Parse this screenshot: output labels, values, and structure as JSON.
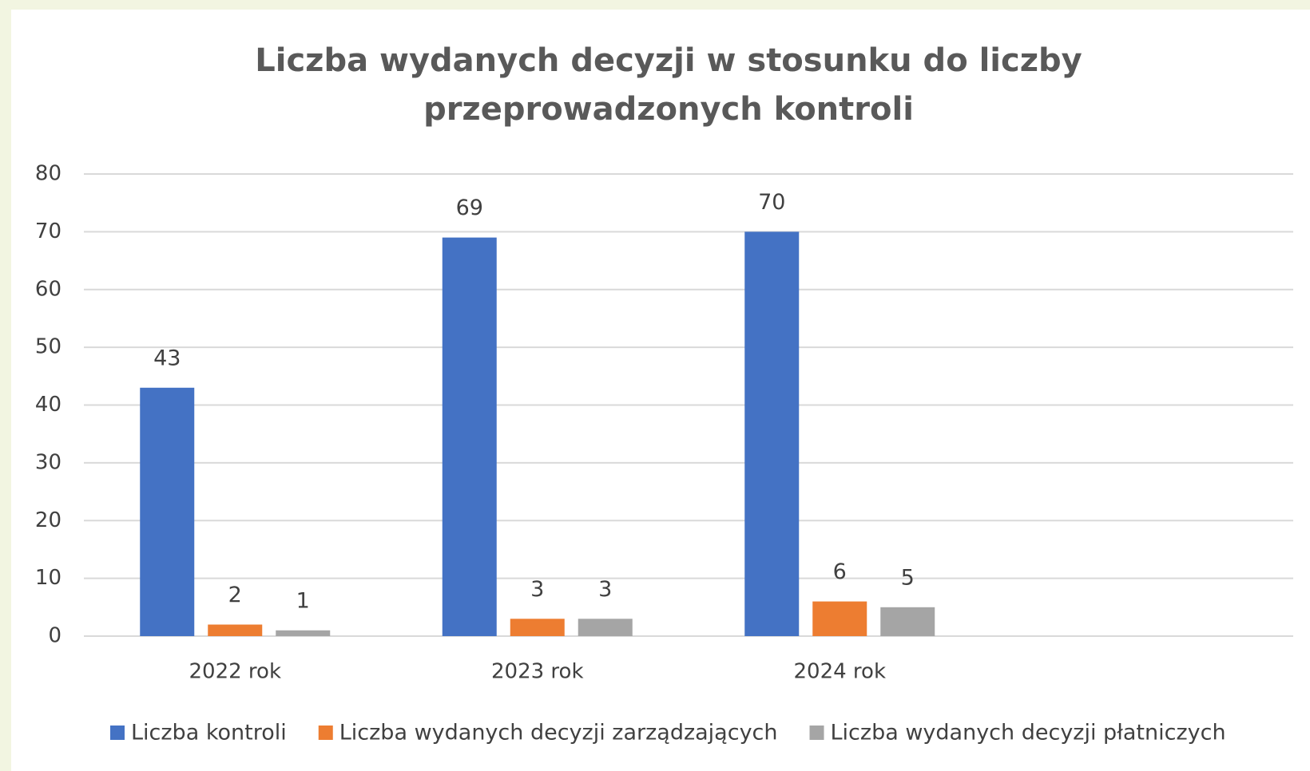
{
  "chart_data": {
    "type": "bar",
    "title": [
      "Liczba wydanych decyzji w stosunku do liczby",
      "przeprowadzonych kontroli"
    ],
    "categories": [
      "2022 rok",
      "2023 rok",
      "2024 rok",
      null
    ],
    "series": [
      {
        "name": "Liczba kontroli",
        "color": "#4472c4",
        "values": [
          43,
          69,
          70,
          null
        ]
      },
      {
        "name": "Liczba wydanych decyzji zarządzających",
        "color": "#ed7d31",
        "values": [
          2,
          3,
          6,
          null
        ]
      },
      {
        "name": "Liczba wydanych decyzji płatniczych",
        "color": "#a5a5a5",
        "values": [
          1,
          3,
          5,
          null
        ]
      }
    ],
    "ylim": [
      0,
      80
    ],
    "yticks": [
      0,
      10,
      20,
      30,
      40,
      50,
      60,
      70,
      80
    ],
    "grid": true,
    "data_labels": true,
    "legend": "bottom"
  }
}
